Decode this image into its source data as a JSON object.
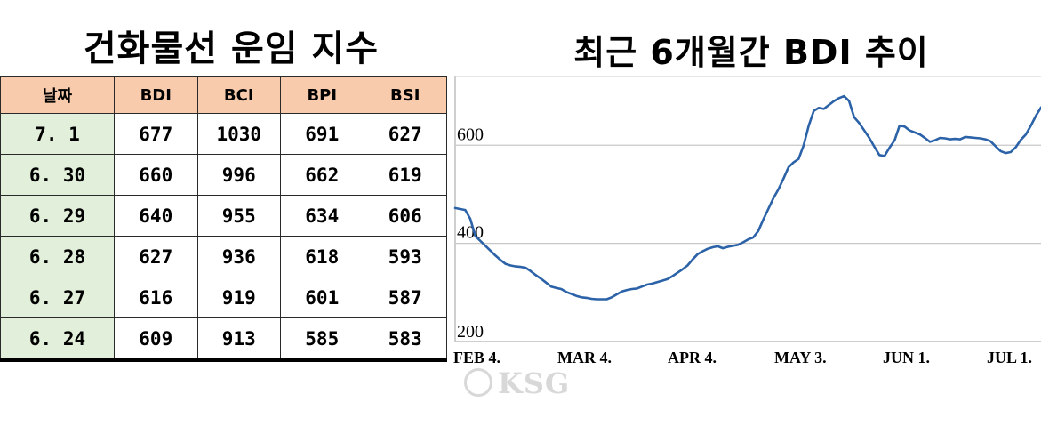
{
  "table": {
    "title": "건화물선 운임 지수",
    "headers": [
      "날짜",
      "BDI",
      "BCI",
      "BPI",
      "BSI"
    ],
    "rows": [
      [
        "7. 1",
        "677",
        "1030",
        "691",
        "627"
      ],
      [
        "6. 30",
        "660",
        "996",
        "662",
        "619"
      ],
      [
        "6. 29",
        "640",
        "955",
        "634",
        "606"
      ],
      [
        "6. 28",
        "627",
        "936",
        "618",
        "593"
      ],
      [
        "6. 27",
        "616",
        "919",
        "601",
        "587"
      ],
      [
        "6. 24",
        "609",
        "913",
        "585",
        "583"
      ]
    ]
  },
  "watermark": "KSG",
  "chart_data": {
    "type": "line",
    "title": "최근 6개월간 BDI 추이",
    "xlabel": "",
    "ylabel": "",
    "x_tick_labels": [
      "FEB 4.",
      "MAR 4.",
      "APR 4.",
      "MAY 3.",
      "JUN 1.",
      "JUL 1."
    ],
    "y_ticks": [
      200,
      400,
      600
    ],
    "ylim": [
      200,
      740
    ],
    "grid": true,
    "legend": "none",
    "line_color": "#2b62a8",
    "series": [
      {
        "name": "",
        "values": [
          472,
          470,
          468,
          450,
          415,
          405,
          395,
          385,
          375,
          366,
          358,
          355,
          353,
          352,
          350,
          343,
          335,
          328,
          320,
          312,
          309,
          307,
          301,
          297,
          293,
          290,
          289,
          287,
          286,
          286,
          286,
          290,
          296,
          302,
          305,
          307,
          308,
          312,
          316,
          318,
          321,
          324,
          327,
          333,
          340,
          347,
          355,
          367,
          378,
          384,
          389,
          392,
          394,
          390,
          393,
          395,
          397,
          402,
          408,
          412,
          425,
          448,
          470,
          492,
          510,
          532,
          555,
          565,
          572,
          600,
          640,
          670,
          676,
          674,
          682,
          690,
          696,
          700,
          690,
          657,
          645,
          630,
          615,
          597,
          580,
          578,
          595,
          610,
          640,
          638,
          630,
          626,
          622,
          615,
          607,
          610,
          615,
          614,
          612,
          613,
          612,
          617,
          616,
          615,
          614,
          612,
          608,
          598,
          588,
          584,
          586,
          596,
          611,
          622,
          640,
          660,
          677
        ]
      }
    ]
  }
}
